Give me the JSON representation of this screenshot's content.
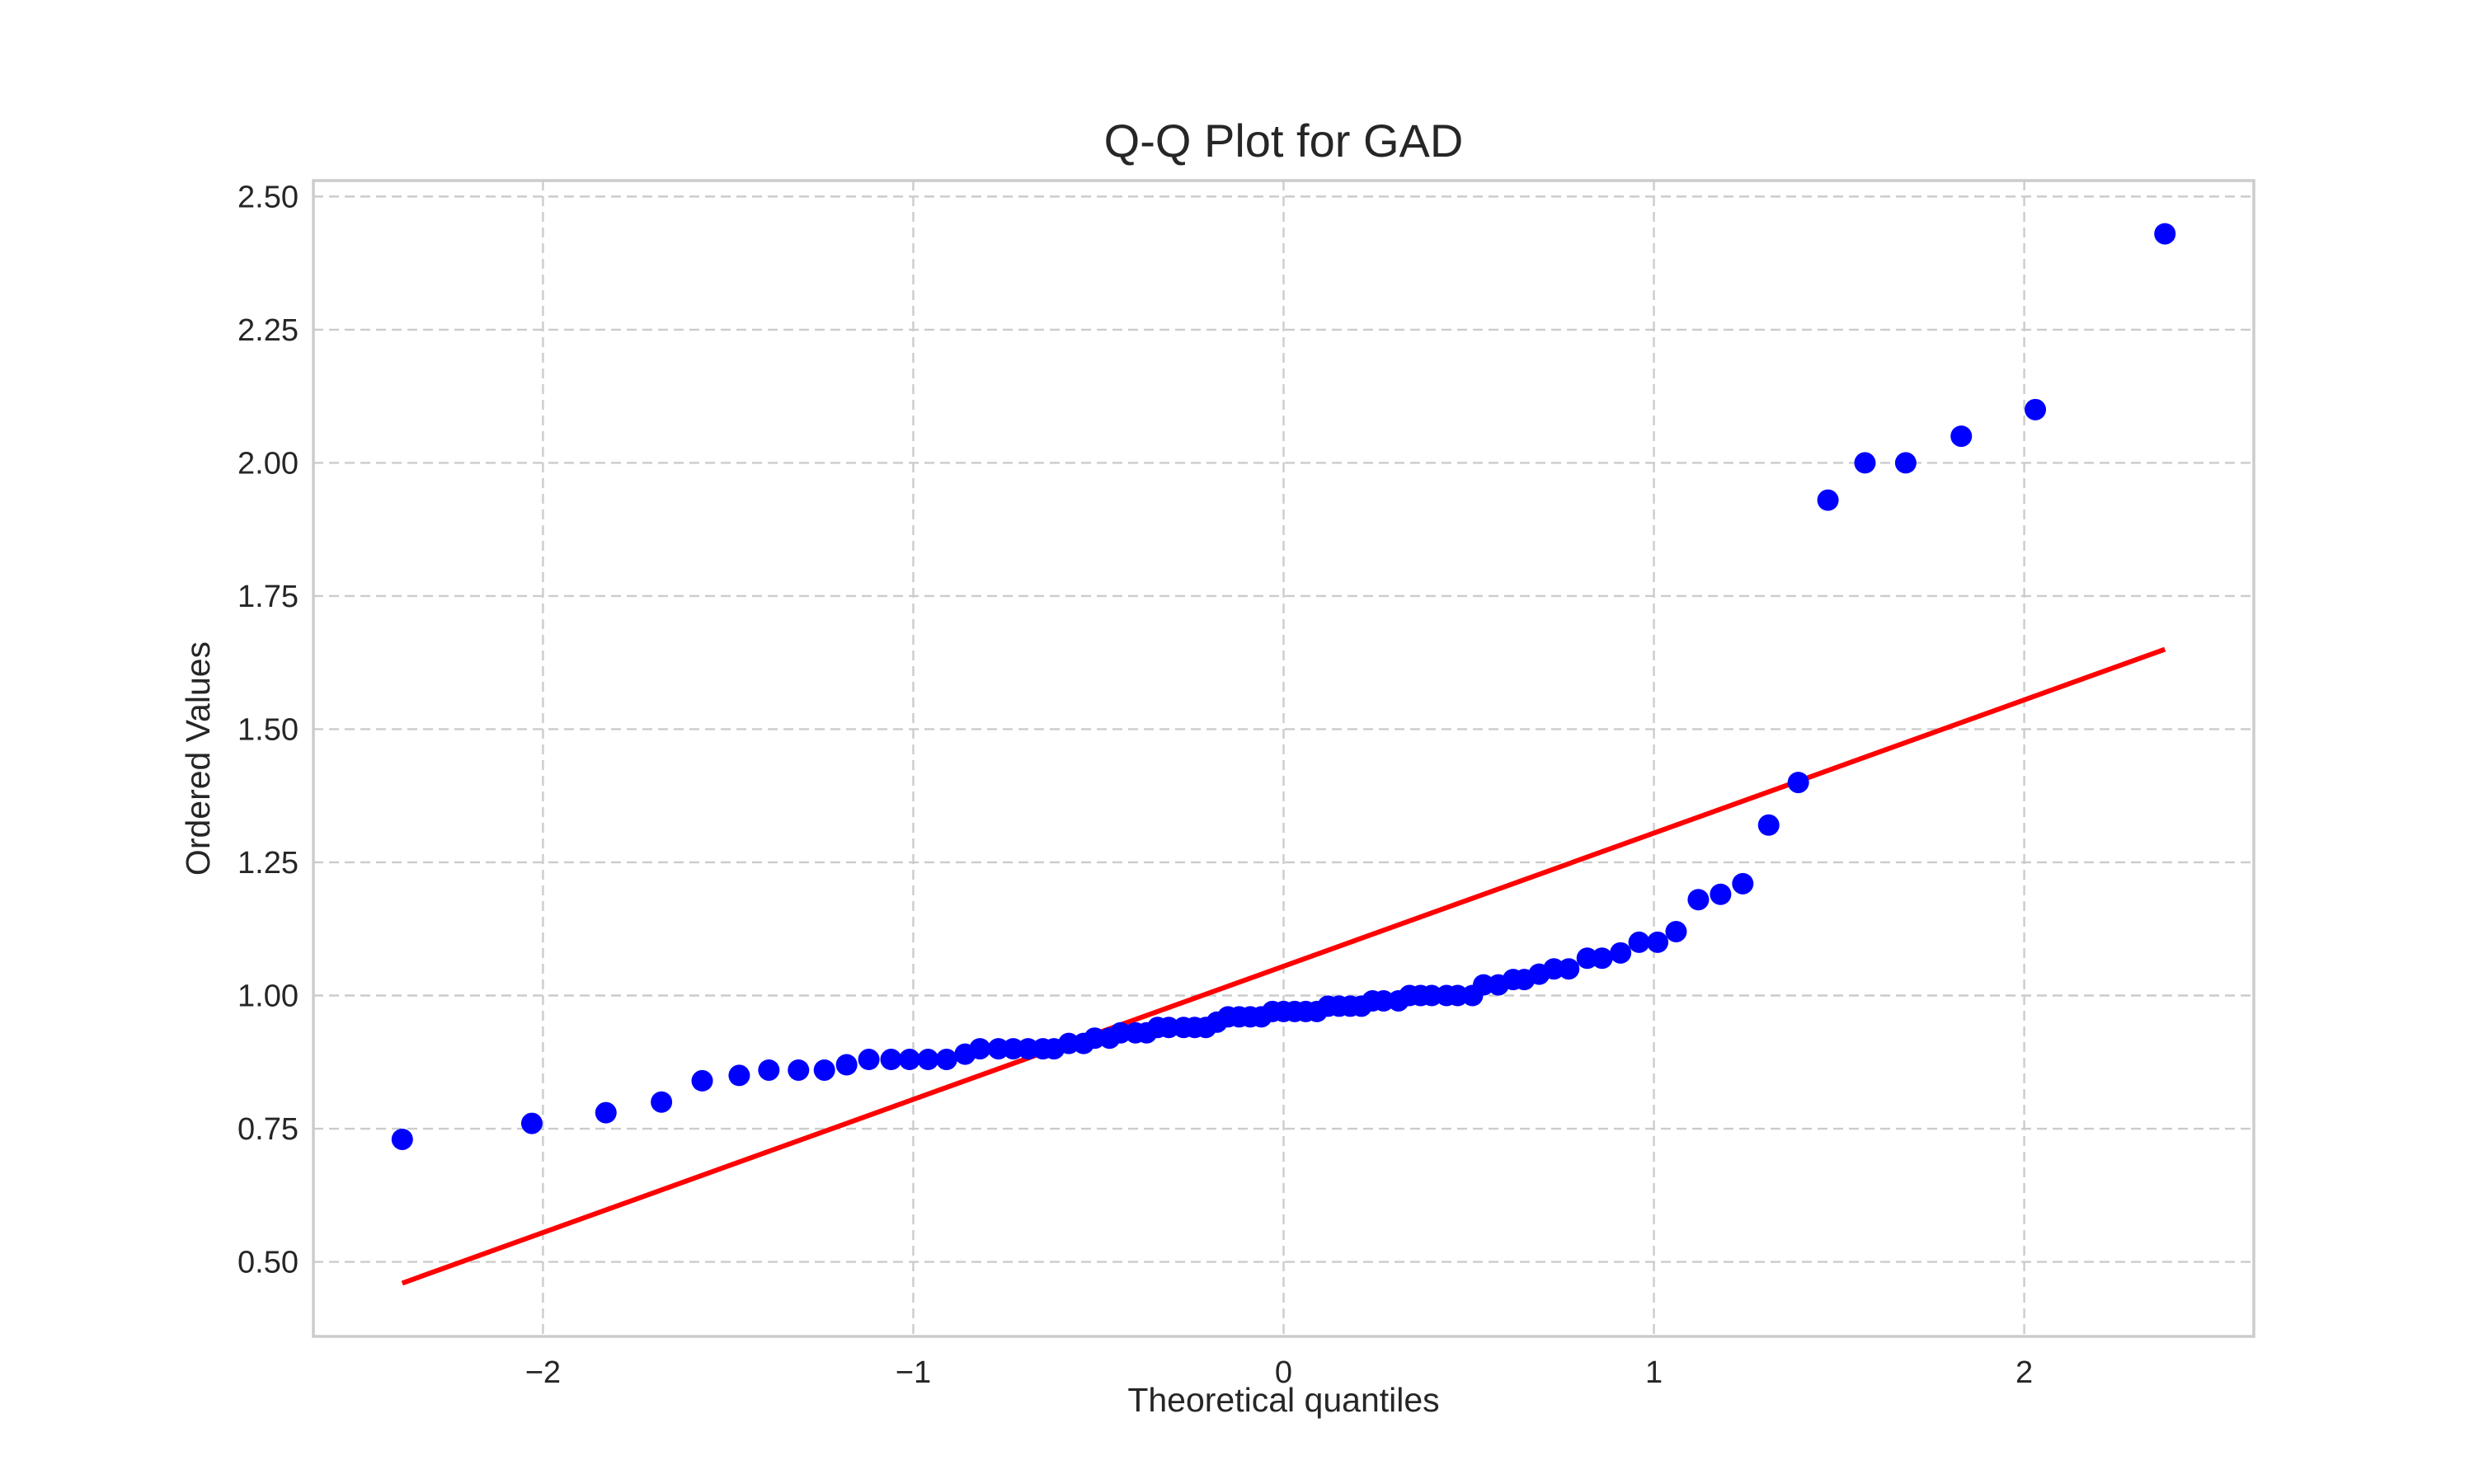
{
  "chart_data": {
    "type": "scatter",
    "title": "Q-Q Plot for GAD",
    "xlabel": "Theoretical quantiles",
    "ylabel": "Ordered Values",
    "xlim": [
      -2.62,
      2.62
    ],
    "ylim": [
      0.36,
      2.53
    ],
    "xticks": [
      -2,
      -1,
      0,
      1,
      2
    ],
    "xtick_labels": [
      "−2",
      "−1",
      "0",
      "1",
      "2"
    ],
    "yticks": [
      0.5,
      0.75,
      1.0,
      1.25,
      1.5,
      1.75,
      2.0,
      2.25,
      2.5
    ],
    "ytick_labels": [
      "0.50",
      "0.75",
      "1.00",
      "1.25",
      "1.50",
      "1.75",
      "2.00",
      "2.25",
      "2.50"
    ],
    "grid": true,
    "colors": {
      "points": "#0000ff",
      "fit_line": "#ff0000",
      "grid": "#cccccc",
      "text": "#262626"
    },
    "series": [
      {
        "values": [
          [
            -2.38,
            0.73
          ],
          [
            -2.03,
            0.76
          ],
          [
            -1.83,
            0.78
          ],
          [
            -1.68,
            0.8
          ],
          [
            -1.57,
            0.84
          ],
          [
            -1.47,
            0.85
          ],
          [
            -1.39,
            0.86
          ],
          [
            -1.31,
            0.86
          ],
          [
            -1.24,
            0.86
          ],
          [
            -1.18,
            0.87
          ],
          [
            -1.12,
            0.88
          ],
          [
            -1.06,
            0.88
          ],
          [
            -1.01,
            0.88
          ],
          [
            -0.96,
            0.88
          ],
          [
            -0.91,
            0.88
          ],
          [
            -0.86,
            0.89
          ],
          [
            -0.82,
            0.9
          ],
          [
            -0.77,
            0.9
          ],
          [
            -0.73,
            0.9
          ],
          [
            -0.69,
            0.9
          ],
          [
            -0.65,
            0.9
          ],
          [
            -0.62,
            0.9
          ],
          [
            -0.58,
            0.91
          ],
          [
            -0.54,
            0.91
          ],
          [
            -0.51,
            0.92
          ],
          [
            -0.47,
            0.92
          ],
          [
            -0.44,
            0.93
          ],
          [
            -0.4,
            0.93
          ],
          [
            -0.37,
            0.93
          ],
          [
            -0.34,
            0.94
          ],
          [
            -0.31,
            0.94
          ],
          [
            -0.27,
            0.94
          ],
          [
            -0.24,
            0.94
          ],
          [
            -0.21,
            0.94
          ],
          [
            -0.18,
            0.95
          ],
          [
            -0.15,
            0.96
          ],
          [
            -0.12,
            0.96
          ],
          [
            -0.09,
            0.96
          ],
          [
            -0.06,
            0.96
          ],
          [
            -0.03,
            0.97
          ],
          [
            0.0,
            0.97
          ],
          [
            0.03,
            0.97
          ],
          [
            0.06,
            0.97
          ],
          [
            0.09,
            0.97
          ],
          [
            0.12,
            0.98
          ],
          [
            0.15,
            0.98
          ],
          [
            0.18,
            0.98
          ],
          [
            0.21,
            0.98
          ],
          [
            0.24,
            0.99
          ],
          [
            0.27,
            0.99
          ],
          [
            0.31,
            0.99
          ],
          [
            0.34,
            1.0
          ],
          [
            0.37,
            1.0
          ],
          [
            0.4,
            1.0
          ],
          [
            0.44,
            1.0
          ],
          [
            0.47,
            1.0
          ],
          [
            0.51,
            1.0
          ],
          [
            0.54,
            1.02
          ],
          [
            0.58,
            1.02
          ],
          [
            0.62,
            1.03
          ],
          [
            0.65,
            1.03
          ],
          [
            0.69,
            1.04
          ],
          [
            0.73,
            1.05
          ],
          [
            0.77,
            1.05
          ],
          [
            0.82,
            1.07
          ],
          [
            0.86,
            1.07
          ],
          [
            0.91,
            1.08
          ],
          [
            0.96,
            1.1
          ],
          [
            1.01,
            1.1
          ],
          [
            1.06,
            1.12
          ],
          [
            1.12,
            1.18
          ],
          [
            1.18,
            1.19
          ],
          [
            1.24,
            1.21
          ],
          [
            1.31,
            1.32
          ],
          [
            1.39,
            1.4
          ],
          [
            1.47,
            1.93
          ],
          [
            1.57,
            2.0
          ],
          [
            1.68,
            2.0
          ],
          [
            1.83,
            2.05
          ],
          [
            2.03,
            2.1
          ],
          [
            2.38,
            2.43
          ]
        ]
      }
    ],
    "fit_line": {
      "x": [
        -2.38,
        2.38
      ],
      "y": [
        0.46,
        1.65
      ]
    }
  }
}
